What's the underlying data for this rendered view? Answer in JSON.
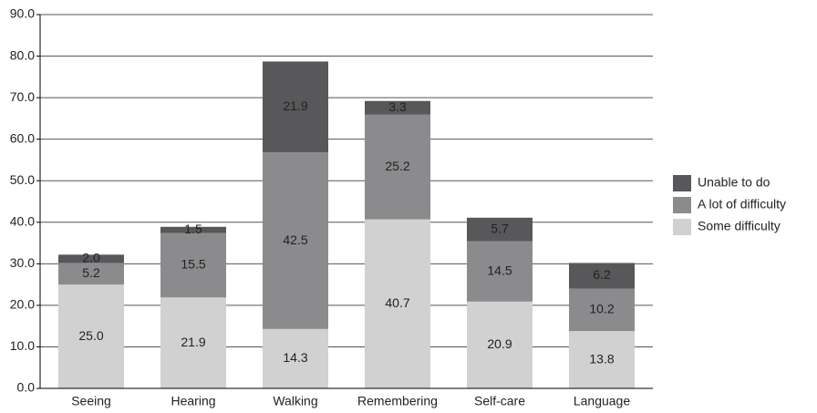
{
  "chart_data": {
    "type": "stacked_bar",
    "categories": [
      "Seeing",
      "Hearing",
      "Walking",
      "Remembering",
      "Self-care",
      "Language"
    ],
    "series": [
      {
        "name": "Some difficulty",
        "color": "#d1d1d2",
        "values": [
          25.0,
          21.9,
          14.3,
          40.7,
          20.9,
          13.8
        ],
        "value_labels": [
          "25.0",
          "21.9",
          "14.3",
          "40.7",
          "20.9",
          "13.8"
        ]
      },
      {
        "name": "A lot of difficulty",
        "color": "#8b8b8d",
        "values": [
          5.2,
          15.5,
          42.5,
          25.2,
          14.5,
          10.2
        ],
        "value_labels": [
          "5.2",
          "15.5",
          "42.5",
          "25.2",
          "14.5",
          "10.2"
        ]
      },
      {
        "name": "Unable to do",
        "color": "#58585a",
        "values": [
          2.0,
          1.5,
          21.9,
          3.3,
          5.7,
          6.2
        ],
        "value_labels": [
          "2.0",
          "1.5",
          "21.9",
          "3.3",
          "5.7",
          "6.2"
        ]
      }
    ],
    "ylim": [
      0,
      90
    ],
    "yticks": [
      {
        "value": 0,
        "label": "0.0"
      },
      {
        "value": 10,
        "label": "10.0"
      },
      {
        "value": 20,
        "label": "20.0"
      },
      {
        "value": 30,
        "label": "30.0"
      },
      {
        "value": 40,
        "label": "40.0"
      },
      {
        "value": 50,
        "label": "50.0"
      },
      {
        "value": 60,
        "label": "60.0"
      },
      {
        "value": 70,
        "label": "70.0"
      },
      {
        "value": 80,
        "label": "80.0"
      },
      {
        "value": 90,
        "label": "90.0"
      }
    ],
    "grid": true,
    "legend": "right"
  }
}
